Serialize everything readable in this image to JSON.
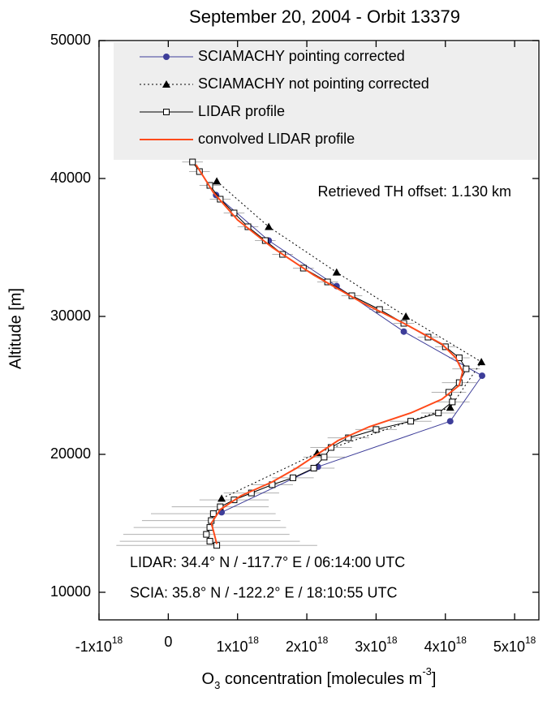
{
  "chart_data": {
    "type": "line",
    "title": "September 20, 2004  - Orbit 13379",
    "ylabel": "Altitude [m]",
    "xlabel": [
      "O",
      "3",
      " concentration [molecules m",
      "-3",
      "]"
    ],
    "xlim": [
      -1e+18,
      5.35e+18
    ],
    "ylim": [
      8000,
      50000
    ],
    "xticks": [
      {
        "value": -1e+18,
        "label": "-1x10",
        "sup": "18"
      },
      0,
      {
        "value": 1e+18,
        "label": "1x10",
        "sup": "18"
      },
      {
        "value": 2e+18,
        "label": "2x10",
        "sup": "18"
      },
      {
        "value": 3e+18,
        "label": "3x10",
        "sup": "18"
      },
      {
        "value": 4e+18,
        "label": "4x10",
        "sup": "18"
      },
      {
        "value": 5e+18,
        "label": "5x10",
        "sup": "18"
      }
    ],
    "yticks": [
      10000,
      20000,
      30000,
      40000,
      50000
    ],
    "annotations": [
      "Retrieved TH offset: 1.130 km",
      "LIDAR:   34.4° N  /  -117.7° E  /  06:14:00 UTC",
      "SCIA:     35.8° N  /  -122.2° E  /  18:10:55 UTC"
    ],
    "series": [
      {
        "name": "SCIAMACHY pointing corrected",
        "color": "#3d3d99",
        "marker": "circle",
        "dash": "solid",
        "x": [
          6.9e+17,
          1.45e+18,
          2.43e+18,
          3.4e+18,
          4.53e+18,
          4.07e+18,
          2.16e+18,
          7.7e+17
        ],
        "y": [
          38800,
          35500,
          32200,
          28900,
          25700,
          22400,
          19100,
          15800
        ]
      },
      {
        "name": "SCIAMACHY not pointing corrected",
        "color": "#000000",
        "marker": "triangle",
        "dash": "dotted",
        "x": [
          7e+17,
          1.45e+18,
          2.43e+18,
          3.43e+18,
          4.52e+18,
          4.07e+18,
          2.15e+18,
          7.7e+17
        ],
        "y": [
          39800,
          36500,
          33200,
          30000,
          26700,
          23400,
          20100,
          16800
        ]
      },
      {
        "name": "LIDAR profile",
        "color": "#000000",
        "marker": "square",
        "dash": "solid",
        "x": [
          3.5e+17,
          4.5e+17,
          6e+17,
          7.5e+17,
          9.5e+17,
          1.15e+18,
          1.4e+18,
          1.65e+18,
          1.95e+18,
          2.3e+18,
          2.65e+18,
          3.05e+18,
          3.4e+18,
          3.75e+18,
          4e+18,
          4.2e+18,
          4.3e+18,
          4.2e+18,
          4.05e+18,
          4.1e+18,
          3.9e+18,
          3.5e+18,
          3e+18,
          2.6e+18,
          2.35e+18,
          2.25e+18,
          2.1e+18,
          1.8e+18,
          1.5e+18,
          1.2e+18,
          9.5e+17,
          7.5e+17,
          6.5e+17,
          6.2e+17,
          6e+17,
          5.5e+17,
          6e+17,
          7e+17
        ],
        "y": [
          41200,
          40500,
          39500,
          38500,
          37500,
          36500,
          35500,
          34500,
          33500,
          32500,
          31500,
          30500,
          29500,
          28500,
          27800,
          27000,
          26200,
          25200,
          24500,
          23800,
          23000,
          22400,
          21800,
          21200,
          20500,
          19800,
          19000,
          18300,
          17800,
          17200,
          16700,
          16200,
          15700,
          15200,
          14700,
          14200,
          13700,
          13400
        ],
        "x_errors": [
          1.5e+17,
          1.5e+17,
          1.5e+17,
          1.5e+17,
          1.5e+17,
          1.5e+17,
          1.5e+17,
          1.5e+17,
          1.5e+17,
          1.5e+17,
          1.5e+17,
          1.5e+17,
          1.5e+17,
          1.5e+17,
          1.5e+17,
          1.5e+17,
          2e+17,
          2.5e+17,
          2.5e+17,
          2.5e+17,
          2.5e+17,
          3e+17,
          3e+17,
          3e+17,
          3e+17,
          3e+17,
          3e+17,
          3e+17,
          3e+17,
          4e+17,
          5e+17,
          7e+17,
          9e+17,
          1e+18,
          1.1e+18,
          1.2e+18,
          1.3e+18,
          1.45e+18
        ]
      },
      {
        "name": "convolved LIDAR profile",
        "color": "#ff4a1a",
        "marker": "none",
        "dash": "solid",
        "x": [
          4e+17,
          6.5e+17,
          1e+18,
          1.5e+18,
          2.1e+18,
          2.8e+18,
          3.4e+18,
          3.95e+18,
          4.15e+18,
          4.25e+18,
          4.2e+18,
          3.95e+18,
          3.5e+18,
          2.9e+18,
          2.45e+18,
          2.15e+18,
          1.85e+18,
          1.5e+18,
          1.05e+18,
          7.5e+17,
          6.2e+17,
          6.5e+17,
          7e+17
        ],
        "y": [
          41000,
          39000,
          37000,
          35000,
          33000,
          31000,
          29500,
          28000,
          27000,
          26000,
          25000,
          24000,
          23000,
          22000,
          21000,
          20000,
          19000,
          18000,
          17000,
          16000,
          15000,
          14500,
          13500
        ]
      }
    ]
  }
}
